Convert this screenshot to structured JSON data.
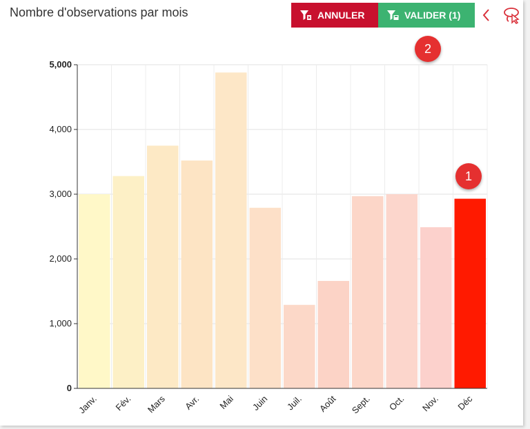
{
  "header": {
    "title": "Nombre d'observations par mois",
    "cancel_label": "ANNULER",
    "validate_label": "VALIDER (1)"
  },
  "annotations": {
    "badge_1": "1",
    "badge_2": "2"
  },
  "colors": {
    "cancel": "#c8102e",
    "validate": "#3cb371",
    "accent": "#e53030",
    "selected_bar": "#ff1a00"
  },
  "icons": [
    "filter-clear-icon",
    "filter-save-icon",
    "chevron-left-icon",
    "lasso-select-icon"
  ],
  "chart_data": {
    "type": "bar",
    "title": "Nombre d'observations par mois",
    "categories": [
      "Janv.",
      "Fév.",
      "Mars",
      "Avr.",
      "Mai",
      "Juin",
      "Juil.",
      "Août",
      "Sept.",
      "Oct.",
      "Nov.",
      "Déc"
    ],
    "values": [
      3000,
      3280,
      3750,
      3520,
      4880,
      2790,
      1290,
      1660,
      2970,
      3000,
      2490,
      2930
    ],
    "colors": [
      "#fff8c8",
      "#fdf0c6",
      "#fde9c5",
      "#fde4c4",
      "#fde7c7",
      "#fde0c8",
      "#fcd8c8",
      "#fcd3c6",
      "#fcd6c8",
      "#fcd6cc",
      "#fcd1cc",
      "#ff1a00"
    ],
    "selected_index": 11,
    "ylim": [
      0,
      5000
    ],
    "yticks": [
      "0",
      "1,000",
      "2,000",
      "3,000",
      "4,000",
      "5,000"
    ],
    "ytick_values": [
      0,
      1000,
      2000,
      3000,
      4000,
      5000
    ],
    "grid": true,
    "xlabel": "",
    "ylabel": ""
  }
}
